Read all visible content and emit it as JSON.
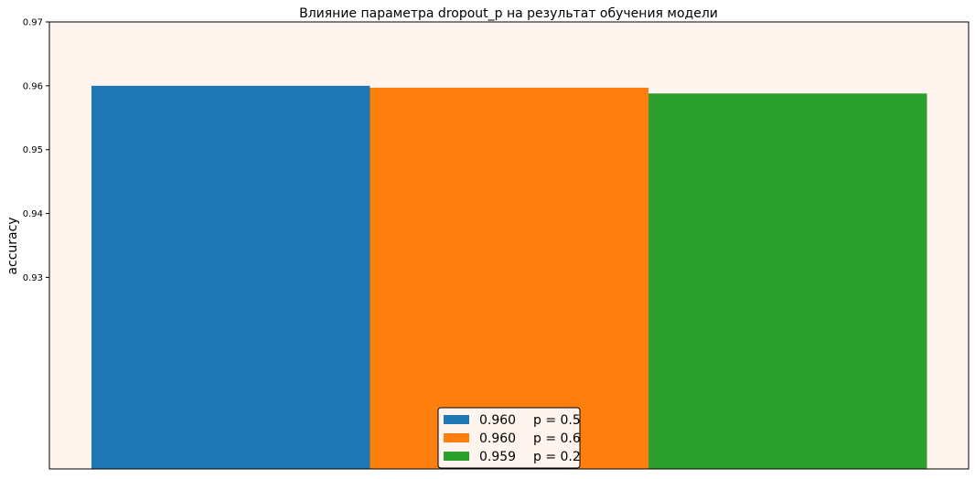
{
  "chart_data": {
    "type": "bar",
    "title": "Влияние параметра dropout_p на результат обучения модели",
    "xlabel": "",
    "ylabel": "accuracy",
    "ylim": [
      0.9,
      0.97
    ],
    "yticks": [
      "0.93",
      "0.94",
      "0.95",
      "0.96",
      "0.97"
    ],
    "grid": false,
    "legend_placement": "bottom-center",
    "plot_background": "#fff4ee",
    "categories": [
      "p = 0.5",
      "p = 0.6",
      "p = 0.2"
    ],
    "series": [
      {
        "name": "p = 0.5",
        "value": 0.96,
        "legend_value": "0.960",
        "color": "#1f77b4"
      },
      {
        "name": "p = 0.6",
        "value": 0.9597,
        "legend_value": "0.960",
        "color": "#ff7f0e"
      },
      {
        "name": "p = 0.2",
        "value": 0.9588,
        "legend_value": "0.959",
        "color": "#2ca02c"
      }
    ]
  }
}
